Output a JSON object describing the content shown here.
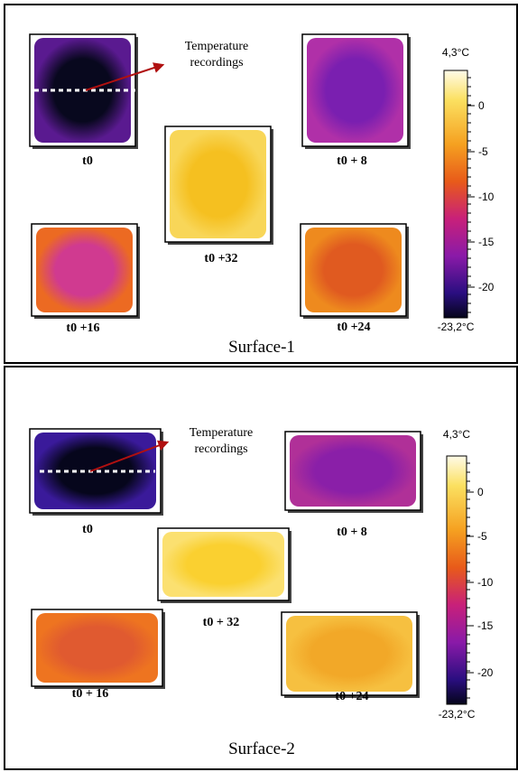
{
  "panels": [
    {
      "caption": "Surface-1",
      "annotation": [
        "Temperature",
        "recordings"
      ],
      "images": [
        {
          "label": "t0"
        },
        {
          "label": "t0 + 8"
        },
        {
          "label": "t0 +32"
        },
        {
          "label": "t0 +16"
        },
        {
          "label": "t0 +24"
        }
      ],
      "colorbar": {
        "max": "4,3°C",
        "ticks": [
          "0",
          "-5",
          "-10",
          "-15",
          "-20"
        ],
        "min": "-23,2°C"
      }
    },
    {
      "caption": "Surface-2",
      "annotation": [
        "Temperature",
        "recordings"
      ],
      "images": [
        {
          "label": "t0"
        },
        {
          "label": "t0 + 8"
        },
        {
          "label": "t0 + 32"
        },
        {
          "label": "t0 + 16"
        },
        {
          "label": "t0 +24"
        }
      ],
      "colorbar": {
        "max": "4,3°C",
        "ticks": [
          "0",
          "-5",
          "-10",
          "-15",
          "-20"
        ],
        "min": "-23,2°C"
      }
    }
  ]
}
